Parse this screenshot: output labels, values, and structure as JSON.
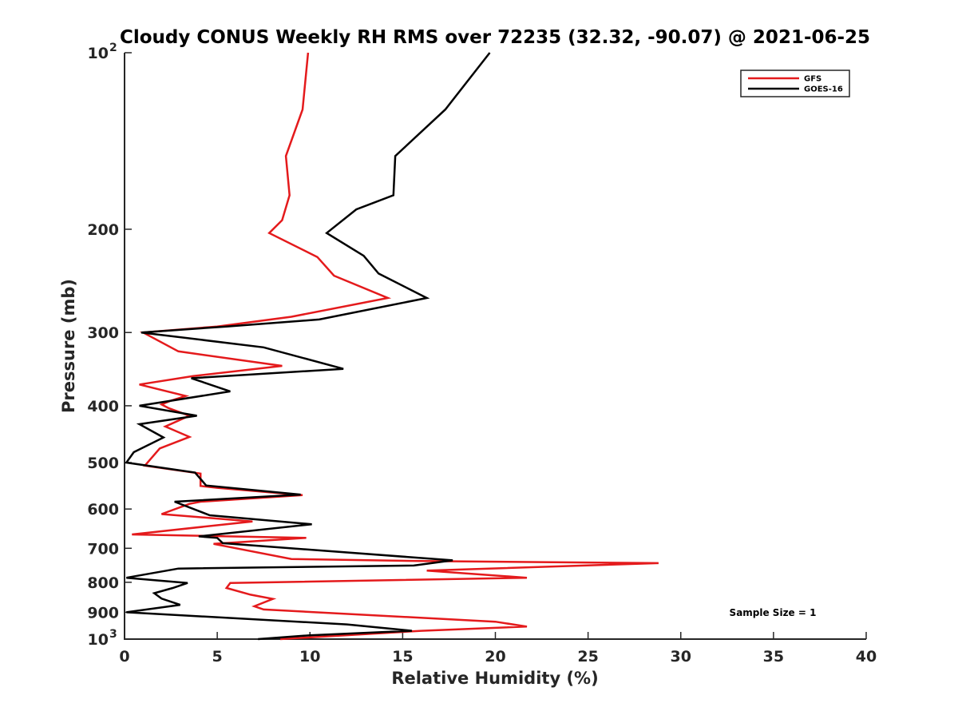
{
  "chart_data": {
    "type": "line",
    "title": "Cloudy CONUS Weekly RH RMS over 72235 (32.32, -90.07) @ 2021-06-25",
    "xlabel": "Relative Humidity (%)",
    "ylabel": "Pressure (mb)",
    "xlim": [
      0,
      40
    ],
    "ylim": [
      100,
      1000
    ],
    "yscale": "log",
    "y_reversed": true,
    "x_ticks": [
      "0",
      "5",
      "10",
      "15",
      "20",
      "25",
      "30",
      "35",
      "40"
    ],
    "y_ticks": [
      {
        "value": 100,
        "base": "10",
        "exp": "2"
      },
      {
        "value": 200,
        "label": "200"
      },
      {
        "value": 300,
        "label": "300"
      },
      {
        "value": 400,
        "label": "400"
      },
      {
        "value": 500,
        "label": "500"
      },
      {
        "value": 600,
        "label": "600"
      },
      {
        "value": 700,
        "label": "700"
      },
      {
        "value": 800,
        "label": "800"
      },
      {
        "value": 900,
        "label": "900"
      },
      {
        "value": 1000,
        "base": "10",
        "exp": "3"
      }
    ],
    "legend_position": "top-right",
    "annotation": "Sample Size = 1",
    "series": [
      {
        "name": "GFS",
        "color": "#e41a1c",
        "points": [
          [
            9.9,
            100
          ],
          [
            9.6,
            125
          ],
          [
            8.7,
            150
          ],
          [
            8.9,
            175
          ],
          [
            8.5,
            193
          ],
          [
            7.8,
            203
          ],
          [
            10.4,
            223
          ],
          [
            11.3,
            240
          ],
          [
            14.2,
            262
          ],
          [
            9.0,
            282
          ],
          [
            5.0,
            293
          ],
          [
            1.0,
            300
          ],
          [
            2.9,
            323
          ],
          [
            8.5,
            342
          ],
          [
            3.7,
            356
          ],
          [
            0.8,
            368
          ],
          [
            3.3,
            385
          ],
          [
            2.5,
            392
          ],
          [
            2.0,
            398
          ],
          [
            2.4,
            404
          ],
          [
            3.5,
            416
          ],
          [
            2.2,
            434
          ],
          [
            3.5,
            452
          ],
          [
            1.9,
            473
          ],
          [
            1.1,
            506
          ],
          [
            4.1,
            522
          ],
          [
            4.1,
            548
          ],
          [
            5.0,
            552
          ],
          [
            9.6,
            568
          ],
          [
            4.1,
            583
          ],
          [
            3.5,
            588
          ],
          [
            2.0,
            612
          ],
          [
            6.9,
            630
          ],
          [
            0.4,
            663
          ],
          [
            9.8,
            672
          ],
          [
            4.8,
            688
          ],
          [
            9.0,
            730
          ],
          [
            16.0,
            736
          ],
          [
            28.8,
            742
          ],
          [
            16.3,
            764
          ],
          [
            21.7,
            786
          ],
          [
            5.7,
            802
          ],
          [
            5.5,
            818
          ],
          [
            6.8,
            840
          ],
          [
            8.0,
            854
          ],
          [
            7.0,
            879
          ],
          [
            7.5,
            890
          ],
          [
            20.0,
            934
          ],
          [
            21.7,
            952
          ],
          [
            16.0,
            968
          ],
          [
            8.4,
            1000
          ]
        ]
      },
      {
        "name": "GOES-16",
        "color": "#000000",
        "points": [
          [
            19.7,
            100
          ],
          [
            17.3,
            125
          ],
          [
            14.6,
            150
          ],
          [
            14.5,
            175
          ],
          [
            12.5,
            185
          ],
          [
            10.9,
            203
          ],
          [
            12.9,
            222
          ],
          [
            13.7,
            238
          ],
          [
            16.3,
            262
          ],
          [
            10.5,
            285
          ],
          [
            5.5,
            293
          ],
          [
            0.9,
            300
          ],
          [
            7.5,
            318
          ],
          [
            11.8,
            346
          ],
          [
            3.6,
            359
          ],
          [
            5.7,
            378
          ],
          [
            0.8,
            400
          ],
          [
            3.9,
            416
          ],
          [
            0.8,
            430
          ],
          [
            2.1,
            453
          ],
          [
            0.5,
            480
          ],
          [
            0.1,
            500
          ],
          [
            3.8,
            520
          ],
          [
            4.4,
            547
          ],
          [
            9.5,
            567
          ],
          [
            2.7,
            583
          ],
          [
            4.6,
            615
          ],
          [
            10.1,
            637
          ],
          [
            4.0,
            668
          ],
          [
            5.0,
            672
          ],
          [
            5.3,
            686
          ],
          [
            17.7,
            734
          ],
          [
            15.6,
            749
          ],
          [
            2.9,
            758
          ],
          [
            0.1,
            786
          ],
          [
            3.4,
            802
          ],
          [
            2.6,
            818
          ],
          [
            1.6,
            835
          ],
          [
            2.0,
            853
          ],
          [
            3.0,
            874
          ],
          [
            0.1,
            900
          ],
          [
            12.0,
            944
          ],
          [
            15.5,
            968
          ],
          [
            10.0,
            985
          ],
          [
            7.2,
            1000
          ]
        ]
      }
    ]
  }
}
